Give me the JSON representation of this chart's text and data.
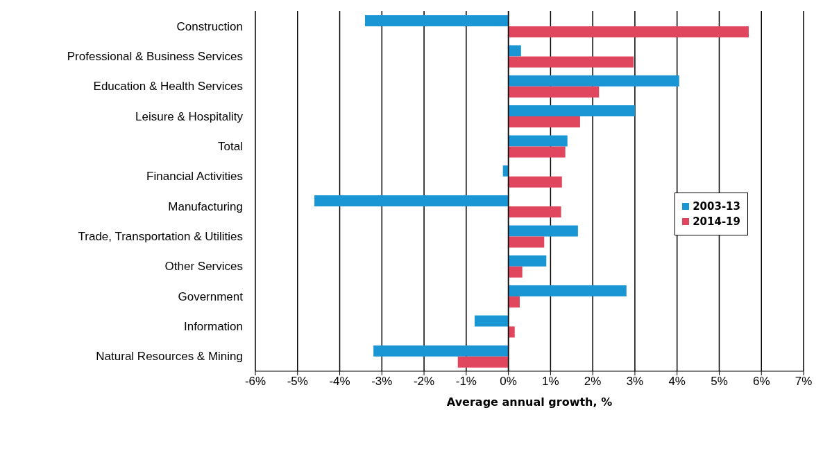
{
  "chart_data": {
    "type": "bar",
    "orientation": "horizontal",
    "xlabel": "Average annual growth, %",
    "categories": [
      "Construction",
      "Professional & Business Services",
      "Education & Health Services",
      "Leisure & Hospitality",
      "Total",
      "Financial Activities",
      "Manufacturing",
      "Trade, Transportation & Utilities",
      "Other Services",
      "Government",
      "Information",
      "Natural Resources & Mining"
    ],
    "series": [
      {
        "name": "2003-13",
        "color": "#1a96d4",
        "values": [
          -3.4,
          0.3,
          4.05,
          3.0,
          1.4,
          -0.13,
          -4.6,
          1.65,
          0.9,
          2.8,
          -0.8,
          -3.2
        ]
      },
      {
        "name": "2014-19",
        "color": "#e0465e",
        "values": [
          5.7,
          2.97,
          2.15,
          1.7,
          1.35,
          1.27,
          1.25,
          0.85,
          0.33,
          0.27,
          0.15,
          -1.2
        ]
      }
    ],
    "xlim": [
      -6,
      7
    ],
    "xticks": [
      {
        "value": -6,
        "label": "-6%"
      },
      {
        "value": -5,
        "label": "-5%"
      },
      {
        "value": -4,
        "label": "-4%"
      },
      {
        "value": -3,
        "label": "-3%"
      },
      {
        "value": -2,
        "label": "-2%"
      },
      {
        "value": -1,
        "label": "-1%"
      },
      {
        "value": 0,
        "label": "0%"
      },
      {
        "value": 1,
        "label": "1%"
      },
      {
        "value": 2,
        "label": "2%"
      },
      {
        "value": 3,
        "label": "3%"
      },
      {
        "value": 4,
        "label": "4%"
      },
      {
        "value": 5,
        "label": "5%"
      },
      {
        "value": 6,
        "label": "6%"
      },
      {
        "value": 7,
        "label": "7%"
      }
    ],
    "grid": "x",
    "legend": "right"
  }
}
